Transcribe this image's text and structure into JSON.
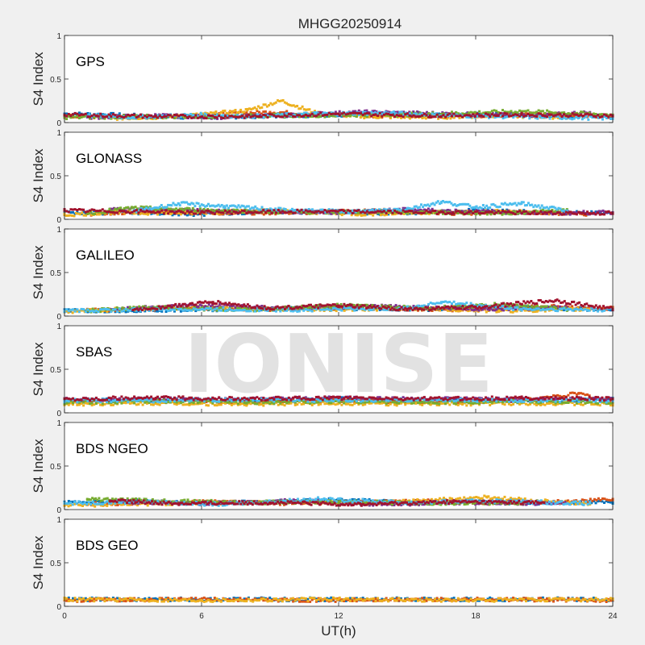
{
  "chart_data": {
    "type": "scatter",
    "title": "MHGG20250914",
    "xlabel": "UT(h)",
    "ylabel": "S4 Index",
    "xlim": [
      0,
      24
    ],
    "ylim": [
      0,
      1
    ],
    "xticks": [
      "0",
      "6",
      "12",
      "18",
      "24"
    ],
    "yticks": [
      "0",
      "0.5",
      "1"
    ],
    "watermark": "IONISE",
    "colors": [
      "#0072bd",
      "#d95319",
      "#edb120",
      "#7e2f8e",
      "#77ac30",
      "#4dbeee",
      "#a2142f"
    ],
    "panels": [
      {
        "label": "GPS",
        "series": [
          {
            "x": [
              0,
              2,
              4,
              6,
              8,
              10,
              12,
              14,
              16,
              18,
              20,
              22,
              24
            ],
            "y": [
              0.1,
              0.09,
              0.07,
              0.06,
              0.07,
              0.08,
              0.09,
              0.1,
              0.08,
              0.09,
              0.1,
              0.08,
              0.07
            ]
          },
          {
            "x": [
              0,
              3,
              5,
              9,
              12,
              15,
              18,
              21,
              24
            ],
            "y": [
              0.07,
              0.06,
              0.08,
              0.12,
              0.09,
              0.07,
              0.08,
              0.1,
              0.06
            ]
          },
          {
            "x": [
              2,
              4,
              6,
              8,
              9.5,
              11,
              13,
              16,
              19,
              22
            ],
            "y": [
              0.05,
              0.06,
              0.09,
              0.14,
              0.25,
              0.11,
              0.07,
              0.06,
              0.08,
              0.06
            ]
          },
          {
            "x": [
              1,
              4,
              7,
              10,
              13,
              17,
              20,
              23
            ],
            "y": [
              0.06,
              0.08,
              0.06,
              0.09,
              0.12,
              0.1,
              0.08,
              0.11
            ]
          },
          {
            "x": [
              0,
              5,
              10,
              15,
              20,
              24
            ],
            "y": [
              0.06,
              0.07,
              0.08,
              0.09,
              0.13,
              0.09
            ]
          },
          {
            "x": [
              1,
              3,
              6,
              8,
              11,
              14,
              17,
              21,
              24
            ],
            "y": [
              0.08,
              0.06,
              0.09,
              0.07,
              0.1,
              0.11,
              0.08,
              0.06,
              0.05
            ]
          },
          {
            "x": [
              0,
              4,
              8,
              12,
              16,
              20,
              24
            ],
            "y": [
              0.09,
              0.07,
              0.07,
              0.1,
              0.08,
              0.09,
              0.08
            ]
          }
        ]
      },
      {
        "label": "GLONASS",
        "series": [
          {
            "x": [
              0,
              3,
              6,
              9,
              12,
              15,
              18,
              21,
              24
            ],
            "y": [
              0.08,
              0.07,
              0.06,
              0.09,
              0.08,
              0.07,
              0.1,
              0.08,
              0.07
            ]
          },
          {
            "x": [
              1,
              4,
              8,
              11,
              14,
              17,
              20,
              23
            ],
            "y": [
              0.06,
              0.09,
              0.07,
              0.08,
              0.1,
              0.07,
              0.08,
              0.06
            ]
          },
          {
            "x": [
              0,
              2,
              5,
              9,
              13,
              16,
              19,
              22
            ],
            "y": [
              0.05,
              0.08,
              0.07,
              0.1,
              0.06,
              0.08,
              0.09,
              0.07
            ]
          },
          {
            "x": [
              2,
              5,
              8,
              12,
              15,
              18,
              21,
              24
            ],
            "y": [
              0.12,
              0.1,
              0.09,
              0.08,
              0.11,
              0.09,
              0.07,
              0.08
            ]
          },
          {
            "x": [
              1,
              3,
              7,
              10,
              14,
              19,
              22
            ],
            "y": [
              0.07,
              0.13,
              0.1,
              0.08,
              0.09,
              0.07,
              0.1
            ]
          },
          {
            "x": [
              3,
              5,
              7,
              10,
              13,
              15,
              16.5,
              18,
              20,
              22
            ],
            "y": [
              0.09,
              0.18,
              0.15,
              0.1,
              0.09,
              0.12,
              0.2,
              0.14,
              0.18,
              0.1
            ]
          },
          {
            "x": [
              0,
              6,
              11,
              17,
              24
            ],
            "y": [
              0.1,
              0.08,
              0.09,
              0.08,
              0.07
            ]
          }
        ]
      },
      {
        "label": "GALILEO",
        "series": [
          {
            "x": [
              0,
              4,
              8,
              12,
              16,
              20,
              24
            ],
            "y": [
              0.06,
              0.07,
              0.08,
              0.09,
              0.08,
              0.1,
              0.07
            ]
          },
          {
            "x": [
              1,
              5,
              9,
              13,
              17,
              21,
              24
            ],
            "y": [
              0.07,
              0.09,
              0.08,
              0.1,
              0.07,
              0.11,
              0.09
            ]
          },
          {
            "x": [
              0,
              3,
              7,
              11,
              15,
              19,
              23
            ],
            "y": [
              0.05,
              0.08,
              0.1,
              0.07,
              0.09,
              0.06,
              0.08
            ]
          },
          {
            "x": [
              2,
              6,
              10,
              14,
              18,
              22
            ],
            "y": [
              0.08,
              0.12,
              0.09,
              0.11,
              0.08,
              0.1
            ]
          },
          {
            "x": [
              1,
              4,
              8,
              12,
              16,
              19,
              22
            ],
            "y": [
              0.06,
              0.1,
              0.07,
              0.12,
              0.09,
              0.13,
              0.08
            ]
          },
          {
            "x": [
              0,
              5,
              10,
              15,
              16.5,
              20,
              24
            ],
            "y": [
              0.06,
              0.08,
              0.07,
              0.09,
              0.16,
              0.08,
              0.07
            ]
          },
          {
            "x": [
              3,
              6.5,
              9,
              12,
              15,
              18,
              21.5,
              24
            ],
            "y": [
              0.07,
              0.16,
              0.09,
              0.12,
              0.08,
              0.1,
              0.18,
              0.08
            ]
          }
        ]
      },
      {
        "label": "SBAS",
        "series": [
          {
            "x": [
              0,
              4,
              8,
              12,
              16,
              20,
              24
            ],
            "y": [
              0.14,
              0.15,
              0.14,
              0.16,
              0.15,
              0.14,
              0.15
            ]
          },
          {
            "x": [
              0,
              4,
              8,
              12,
              16,
              20,
              22.5,
              24
            ],
            "y": [
              0.13,
              0.14,
              0.13,
              0.14,
              0.13,
              0.14,
              0.22,
              0.13
            ]
          },
          {
            "x": [
              0,
              4,
              8,
              12,
              16,
              20,
              24
            ],
            "y": [
              0.1,
              0.11,
              0.1,
              0.11,
              0.1,
              0.11,
              0.1
            ]
          },
          {
            "x": [
              0,
              4,
              8,
              12,
              16,
              20,
              24
            ],
            "y": [
              0.15,
              0.16,
              0.15,
              0.17,
              0.16,
              0.15,
              0.16
            ]
          },
          {
            "x": [
              0,
              4,
              8,
              12,
              16,
              20,
              24
            ],
            "y": [
              0.12,
              0.13,
              0.12,
              0.13,
              0.12,
              0.13,
              0.12
            ]
          },
          {
            "x": [
              0,
              4,
              8,
              12,
              16,
              20,
              24
            ],
            "y": [
              0.14,
              0.14,
              0.15,
              0.14,
              0.15,
              0.14,
              0.14
            ]
          },
          {
            "x": [
              0,
              4,
              8,
              12,
              16,
              20,
              24
            ],
            "y": [
              0.16,
              0.17,
              0.16,
              0.17,
              0.16,
              0.17,
              0.16
            ]
          }
        ]
      },
      {
        "label": "BDS NGEO",
        "series": [
          {
            "x": [
              0,
              3,
              6,
              9,
              12,
              15,
              18,
              21,
              24
            ],
            "y": [
              0.08,
              0.1,
              0.07,
              0.09,
              0.11,
              0.08,
              0.09,
              0.07,
              0.08
            ]
          },
          {
            "x": [
              1,
              4,
              7,
              10,
              13,
              16,
              19,
              22,
              24
            ],
            "y": [
              0.06,
              0.08,
              0.09,
              0.07,
              0.08,
              0.1,
              0.07,
              0.09,
              0.12
            ]
          },
          {
            "x": [
              0,
              5,
              9,
              14,
              18.5,
              23
            ],
            "y": [
              0.05,
              0.07,
              0.09,
              0.08,
              0.14,
              0.06
            ]
          },
          {
            "x": [
              2,
              6,
              10,
              14,
              18,
              22
            ],
            "y": [
              0.09,
              0.07,
              0.1,
              0.06,
              0.08,
              0.07
            ]
          },
          {
            "x": [
              1,
              4,
              8,
              12,
              16,
              20
            ],
            "y": [
              0.12,
              0.1,
              0.08,
              0.09,
              0.07,
              0.08
            ]
          },
          {
            "x": [
              0,
              3,
              7,
              11,
              15,
              19,
              23
            ],
            "y": [
              0.07,
              0.09,
              0.06,
              0.12,
              0.08,
              0.1,
              0.07
            ]
          },
          {
            "x": [
              2,
              5,
              9,
              13,
              17,
              21
            ],
            "y": [
              0.1,
              0.07,
              0.08,
              0.06,
              0.09,
              0.08
            ]
          }
        ]
      },
      {
        "label": "BDS GEO",
        "series": [
          {
            "x": [
              0,
              6,
              12,
              18,
              24
            ],
            "y": [
              0.08,
              0.08,
              0.08,
              0.08,
              0.08
            ]
          },
          {
            "x": [
              0,
              6,
              12,
              18,
              24
            ],
            "y": [
              0.07,
              0.08,
              0.07,
              0.08,
              0.07
            ]
          },
          {
            "x": [
              0,
              6,
              12,
              18,
              24
            ],
            "y": [
              0.08,
              0.07,
              0.08,
              0.07,
              0.08
            ]
          }
        ]
      }
    ]
  }
}
